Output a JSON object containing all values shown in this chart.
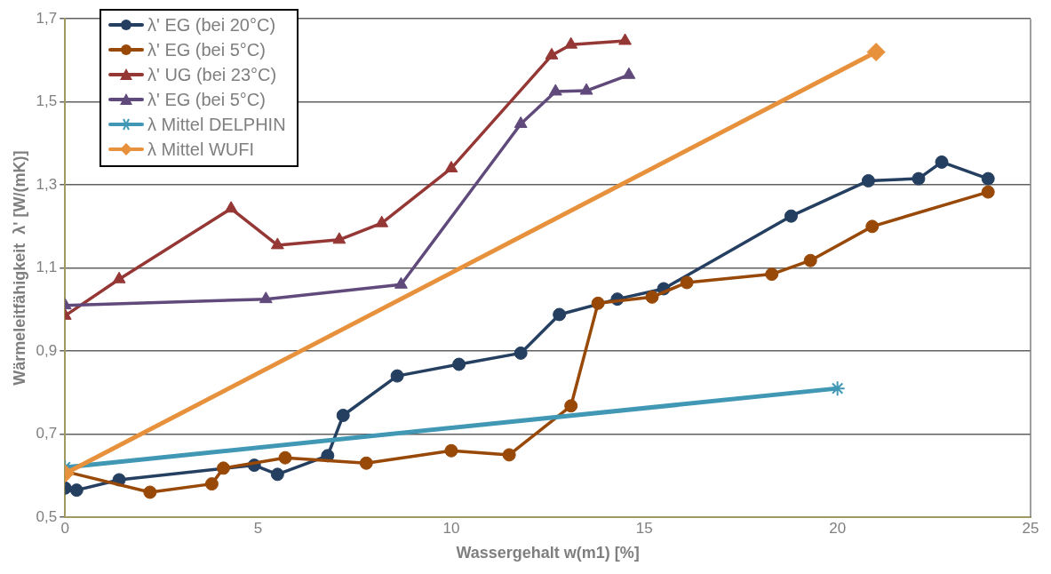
{
  "chart_data": {
    "type": "line",
    "xlabel": "Wassergehalt w(m1) [%]",
    "ylabel": "Wärmeleitfähigkeit  λ' [W/(mK)]",
    "xlim": [
      0,
      25
    ],
    "xticks": [
      0,
      5,
      10,
      15,
      20,
      25
    ],
    "ylim": [
      0.5,
      1.7
    ],
    "yticks": [
      {
        "value": 0.5,
        "label": "0,5"
      },
      {
        "value": 0.7,
        "label": "0,7"
      },
      {
        "value": 0.9,
        "label": "0,9"
      },
      {
        "value": 1.1,
        "label": "1,1"
      },
      {
        "value": 1.3,
        "label": "1,3"
      },
      {
        "value": 1.5,
        "label": "1,5"
      },
      {
        "value": 1.7,
        "label": "1,7"
      }
    ],
    "grid": "y",
    "legend": "top left",
    "line_style": "solid",
    "series": [
      {
        "name": "λ' EG (bei 20°C)",
        "color": "#243f60",
        "marker": "circle",
        "x": [
          0,
          0.3,
          1.4,
          4.9,
          5.5,
          6.8,
          7.2,
          8.6,
          10.2,
          11.8,
          12.8,
          14.3,
          15.5,
          18.8,
          20.8,
          22.1,
          22.7,
          23.9
        ],
        "values": [
          0.57,
          0.565,
          0.59,
          0.625,
          0.603,
          0.648,
          0.745,
          0.84,
          0.868,
          0.895,
          0.988,
          1.025,
          1.05,
          1.225,
          1.31,
          1.315,
          1.355,
          1.315
        ]
      },
      {
        "name": "λ' EG (bei 5°C)",
        "color": "#984807",
        "marker": "circle",
        "x": [
          0,
          2.2,
          3.8,
          4.1,
          5.7,
          7.8,
          10,
          11.5,
          13.1,
          13.8,
          15.2,
          16.1,
          18.3,
          19.3,
          20.9,
          23.9
        ],
        "values": [
          0.61,
          0.56,
          0.58,
          0.618,
          0.643,
          0.63,
          0.66,
          0.65,
          0.768,
          1.015,
          1.03,
          1.065,
          1.085,
          1.118,
          1.2,
          1.283
        ]
      },
      {
        "name": "λ' UG (bei 23°C)",
        "color": "#953735",
        "marker": "triangle",
        "x": [
          0,
          1.4,
          4.3,
          5.5,
          7.1,
          8.2,
          10,
          12.6,
          13.1,
          14.5
        ],
        "values": [
          0.985,
          1.073,
          1.243,
          1.155,
          1.168,
          1.208,
          1.34,
          1.612,
          1.638,
          1.647
        ]
      },
      {
        "name": "λ' EG (bei 5°C)",
        "color": "#604a7b",
        "marker": "triangle",
        "x": [
          0,
          5.2,
          8.7,
          11.8,
          12.7,
          13.5,
          14.6
        ],
        "values": [
          1.01,
          1.025,
          1.06,
          1.447,
          1.525,
          1.527,
          1.565
        ]
      },
      {
        "name": "λ Mittel DELPHIN",
        "color": "#4198b5",
        "marker": "cross",
        "x": [
          0,
          20
        ],
        "values": [
          0.62,
          0.81
        ]
      },
      {
        "name": "λ Mittel WUFI",
        "color": "#e8913c",
        "marker": "diamond",
        "x": [
          0,
          21
        ],
        "values": [
          0.605,
          1.62
        ]
      }
    ]
  }
}
